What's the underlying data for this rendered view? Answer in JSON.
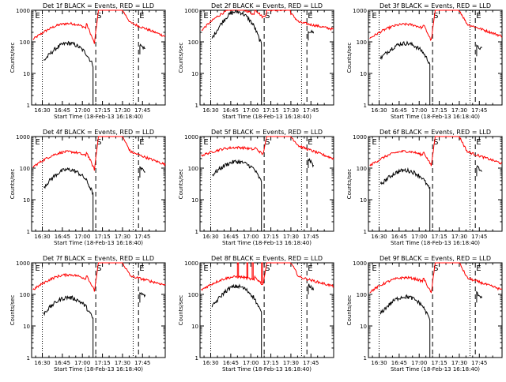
{
  "chart_data": {
    "type": "line",
    "yscale": "log",
    "ylim": [
      1,
      1000
    ],
    "ytick_labels": [
      "1",
      "10",
      "100",
      "1000"
    ],
    "xtick_labels": [
      "16:30",
      "16:45",
      "17:00",
      "17:15",
      "17:30",
      "17:45"
    ],
    "xtick_minutes": [
      0,
      15,
      30,
      45,
      60,
      75
    ],
    "x_range_minutes": [
      -8,
      92
    ],
    "xlabel": "Start Time (18-Feb-13 16:18:40)",
    "ylabel": "Counts/sec",
    "colors": {
      "events": "#000000",
      "lld": "#ff0000"
    },
    "markers": {
      "dotted_minutes": [
        0,
        68
      ],
      "dashed_minutes": [
        40,
        72
      ],
      "labels": [
        "E",
        "S",
        "E"
      ],
      "label_minutes": [
        -6,
        40,
        72
      ]
    },
    "panels": [
      {
        "title": "Det 1f BLACK = Events, RED = LLD",
        "lld": {
          "start": 120,
          "peak": 380,
          "post": 90,
          "flare_peak": 1000,
          "late": 400,
          "end": 150
        },
        "events": {
          "start": 25,
          "peak": 90,
          "end": 40,
          "late_start": 80,
          "late_end": 60
        }
      },
      {
        "title": "Det 2f BLACK = Events, RED = LLD",
        "lld": {
          "start": 230,
          "peak": 1100,
          "post": 600,
          "flare_peak": 800,
          "late": 420,
          "end": 250
        },
        "events": {
          "start": 130,
          "peak": 900,
          "end": 300,
          "late_start": 220,
          "late_end": 200
        }
      },
      {
        "title": "Det 3f BLACK = Events, RED = LLD",
        "lld": {
          "start": 130,
          "peak": 360,
          "post": 110,
          "flare_peak": 1000,
          "late": 360,
          "end": 150
        },
        "events": {
          "start": 30,
          "peak": 90,
          "end": 35,
          "late_start": 70,
          "late_end": 60
        }
      },
      {
        "title": "Det 4f BLACK = Events, RED = LLD",
        "lld": {
          "start": 110,
          "peak": 330,
          "post": 90,
          "flare_peak": 1000,
          "late": 330,
          "end": 130
        },
        "events": {
          "start": 25,
          "peak": 90,
          "end": 30,
          "late_start": 100,
          "late_end": 80
        }
      },
      {
        "title": "Det 5f BLACK = Events, RED = LLD",
        "lld": {
          "start": 250,
          "peak": 450,
          "post": 270,
          "flare_peak": 1000,
          "late": 500,
          "end": 200
        },
        "events": {
          "start": 60,
          "peak": 160,
          "end": 50,
          "late_start": 200,
          "late_end": 120
        }
      },
      {
        "title": "Det 6f BLACK = Events, RED = LLD",
        "lld": {
          "start": 120,
          "peak": 340,
          "post": 120,
          "flare_peak": 1000,
          "late": 330,
          "end": 140
        },
        "events": {
          "start": 30,
          "peak": 85,
          "end": 35,
          "late_start": 110,
          "late_end": 80
        }
      },
      {
        "title": "Det 7f BLACK = Events, RED = LLD",
        "lld": {
          "start": 140,
          "peak": 420,
          "post": 130,
          "flare_peak": 1000,
          "late": 380,
          "end": 200
        },
        "events": {
          "start": 25,
          "peak": 80,
          "end": 30,
          "late_start": 110,
          "late_end": 90
        }
      },
      {
        "title": "Det 8f BLACK = Events, RED = LLD",
        "lld": {
          "start": 140,
          "peak": 360,
          "post": 200,
          "flare_peak": 1000,
          "late": 360,
          "end": 180
        },
        "events": {
          "start": 40,
          "peak": 180,
          "end": 60,
          "late_start": 200,
          "late_end": 150
        },
        "spikes_minutes": [
          20,
          27,
          31,
          38
        ]
      },
      {
        "title": "Det 9f BLACK = Events, RED = LLD",
        "lld": {
          "start": 120,
          "peak": 340,
          "post": 110,
          "flare_peak": 1000,
          "late": 330,
          "end": 140
        },
        "events": {
          "start": 25,
          "peak": 85,
          "end": 30,
          "late_start": 110,
          "late_end": 80
        }
      }
    ]
  }
}
